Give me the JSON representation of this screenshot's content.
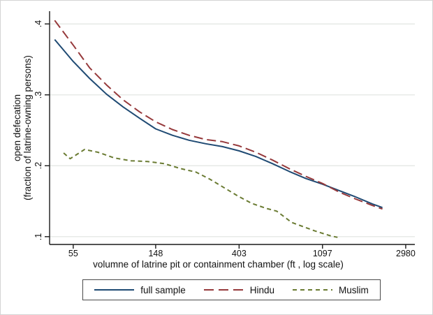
{
  "figure": {
    "y_axis": {
      "title_line1": "open defecation",
      "title_line2": "(fraction of latrine-owning persons)",
      "tick_labels": [
        ".1",
        ".2",
        ".3",
        ".4"
      ],
      "tick_values": [
        0.1,
        0.2,
        0.3,
        0.4
      ]
    },
    "x_axis": {
      "title": "volumne of latrine pit or containment chamber (ft , log scale)",
      "tick_labels": [
        "55",
        "148",
        "403",
        "1097",
        "2980"
      ],
      "tick_values": [
        55,
        148,
        403,
        1097,
        2980
      ]
    }
  },
  "chart_data": {
    "type": "line",
    "title": "",
    "xlabel": "volumne of latrine pit or containment chamber (ft , log scale)",
    "ylabel": "open defecation (fraction of latrine-owning persons)",
    "x_scale": "log",
    "xlim": [
      41.4,
      3325
    ],
    "ylim": [
      0.089,
      0.418
    ],
    "x_ticks": [
      55,
      148,
      403,
      1097,
      2980
    ],
    "y_ticks": [
      0.1,
      0.2,
      0.3,
      0.4
    ],
    "grid": "horizontal",
    "legend_position": "bottom",
    "colors": {
      "full_sample": "#1f4a73",
      "hindu": "#96393b",
      "muslim": "#6a7b32",
      "gridline": "#e4e8e4",
      "axis": "#1a1a1a"
    },
    "series": [
      {
        "name": "full sample",
        "color": "#1f4a73",
        "dash": "solid",
        "x": [
          44,
          55,
          67,
          82,
          100,
          122,
          148,
          181,
          221,
          270,
          330,
          403,
          493,
          602,
          735,
          898,
          1097,
          1339,
          1636,
          1998,
          2253
        ],
        "y": [
          0.378,
          0.347,
          0.323,
          0.301,
          0.283,
          0.267,
          0.252,
          0.243,
          0.236,
          0.231,
          0.227,
          0.221,
          0.213,
          0.203,
          0.192,
          0.182,
          0.174,
          0.165,
          0.156,
          0.146,
          0.141
        ]
      },
      {
        "name": "Hindu",
        "color": "#96393b",
        "dash": "long",
        "x": [
          44,
          55,
          67,
          82,
          100,
          122,
          148,
          181,
          221,
          270,
          330,
          403,
          493,
          602,
          735,
          898,
          1097,
          1339,
          1636,
          1998,
          2253
        ],
        "y": [
          0.405,
          0.37,
          0.338,
          0.314,
          0.293,
          0.276,
          0.262,
          0.251,
          0.243,
          0.237,
          0.234,
          0.228,
          0.219,
          0.208,
          0.196,
          0.185,
          0.175,
          0.163,
          0.153,
          0.144,
          0.139
        ]
      },
      {
        "name": "Muslim",
        "color": "#6a7b32",
        "dash": "short",
        "x": [
          49,
          53,
          63,
          74,
          90,
          110,
          134,
          164,
          200,
          240,
          284,
          337,
          399,
          469,
          556,
          633,
          758,
          1003,
          1212,
          1314
        ],
        "y": [
          0.218,
          0.21,
          0.223,
          0.219,
          0.211,
          0.207,
          0.206,
          0.203,
          0.196,
          0.191,
          0.181,
          0.169,
          0.157,
          0.147,
          0.14,
          0.136,
          0.12,
          0.108,
          0.101,
          0.099
        ]
      }
    ]
  }
}
